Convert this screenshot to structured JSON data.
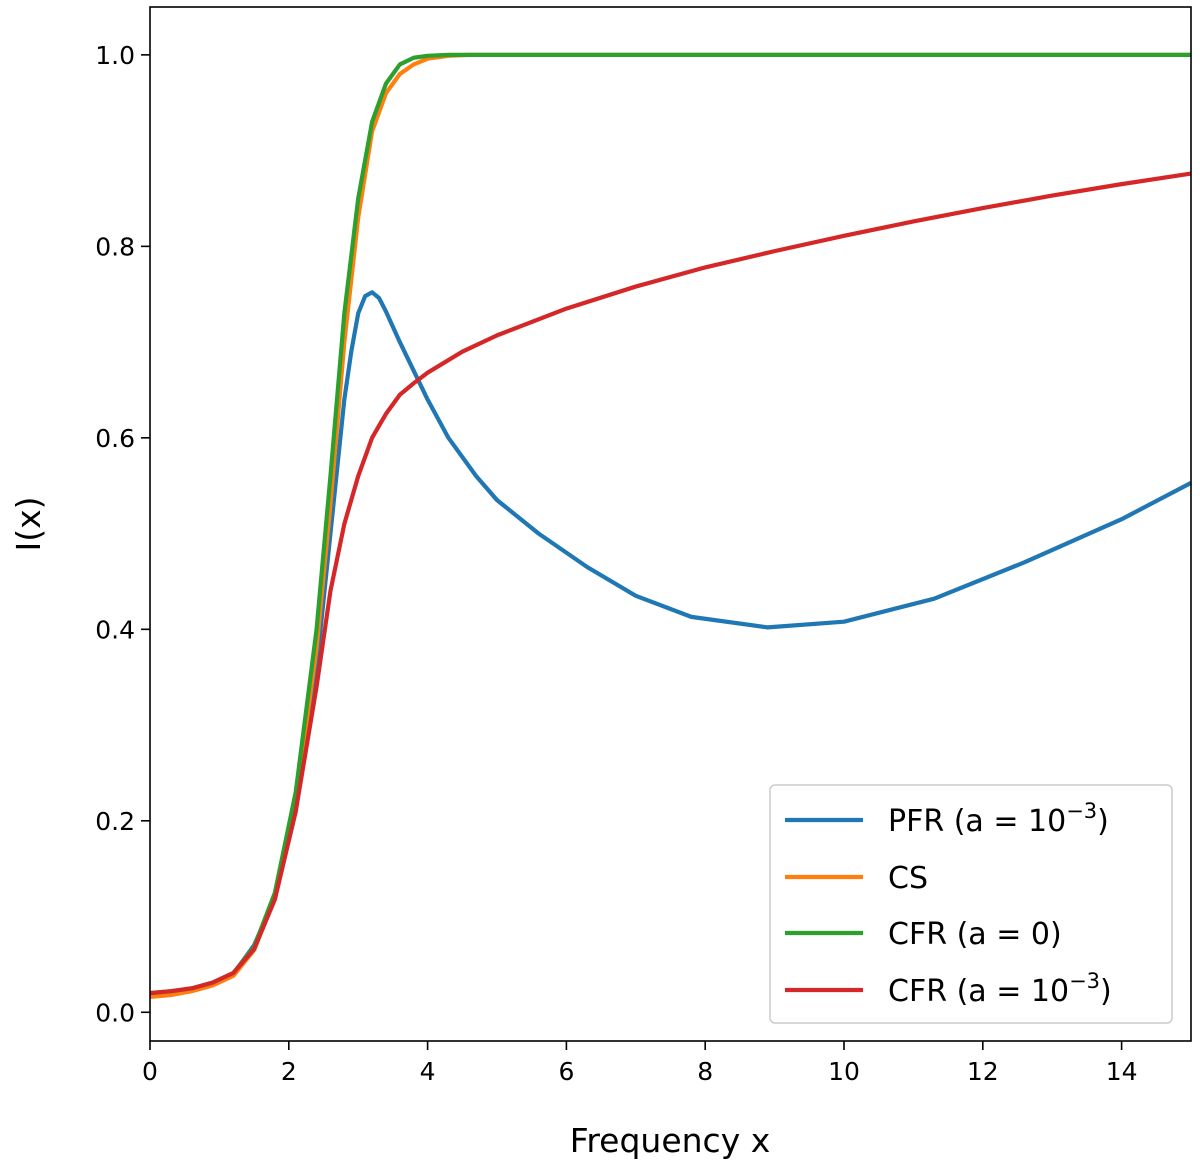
{
  "chart_data": {
    "type": "line",
    "title": "",
    "xlabel": "Frequency x",
    "ylabel": "I(x)",
    "xlim": [
      0,
      15
    ],
    "ylim": [
      -0.03,
      1.05
    ],
    "xticks": [
      0,
      2,
      4,
      6,
      8,
      10,
      12,
      14
    ],
    "yticks": [
      0.0,
      0.2,
      0.4,
      0.6,
      0.8,
      1.0
    ],
    "xtick_labels": [
      "0",
      "2",
      "4",
      "6",
      "8",
      "10",
      "12",
      "14"
    ],
    "ytick_labels": [
      "0.0",
      "0.2",
      "0.4",
      "0.6",
      "0.8",
      "1.0"
    ],
    "grid": false,
    "legend_position": "bottom-right",
    "series": [
      {
        "name": "PFR (a = 10^-3)",
        "legend_label": "PFR (a = 10",
        "legend_exp": "−3",
        "legend_close": ")",
        "color": "#1f77b4",
        "x": [
          0,
          0.3,
          0.6,
          0.9,
          1.2,
          1.5,
          1.8,
          2.1,
          2.4,
          2.6,
          2.8,
          2.9,
          3.0,
          3.1,
          3.2,
          3.3,
          3.4,
          3.6,
          3.8,
          4.0,
          4.3,
          4.7,
          5.0,
          5.6,
          6.3,
          7.0,
          7.8,
          8.9,
          10.0,
          11.3,
          12.6,
          14.0,
          15.0
        ],
        "y": [
          0.02,
          0.021,
          0.024,
          0.03,
          0.04,
          0.07,
          0.12,
          0.21,
          0.36,
          0.5,
          0.64,
          0.69,
          0.73,
          0.748,
          0.752,
          0.746,
          0.732,
          0.7,
          0.67,
          0.64,
          0.6,
          0.56,
          0.535,
          0.5,
          0.465,
          0.435,
          0.413,
          0.402,
          0.408,
          0.432,
          0.47,
          0.515,
          0.553
        ]
      },
      {
        "name": "CS",
        "legend_label": "CS",
        "legend_exp": "",
        "legend_close": "",
        "color": "#ff7f0e",
        "x": [
          0,
          0.3,
          0.6,
          0.9,
          1.2,
          1.5,
          1.8,
          2.1,
          2.4,
          2.6,
          2.8,
          3.0,
          3.2,
          3.4,
          3.6,
          3.8,
          4.0,
          4.3,
          4.6,
          5.0,
          6.0,
          8.0,
          10.0,
          12.0,
          15.0
        ],
        "y": [
          0.016,
          0.018,
          0.022,
          0.028,
          0.038,
          0.065,
          0.12,
          0.22,
          0.38,
          0.53,
          0.7,
          0.83,
          0.92,
          0.96,
          0.98,
          0.99,
          0.996,
          0.999,
          1.0,
          1.0,
          1.0,
          1.0,
          1.0,
          1.0,
          1.0
        ]
      },
      {
        "name": "CFR (a = 0)",
        "legend_label": "CFR (a = 0)",
        "legend_exp": "",
        "legend_close": "",
        "color": "#2ca02c",
        "x": [
          0,
          0.3,
          0.6,
          0.9,
          1.2,
          1.5,
          1.8,
          2.1,
          2.4,
          2.6,
          2.8,
          3.0,
          3.2,
          3.4,
          3.6,
          3.8,
          4.0,
          4.3,
          4.6,
          5.0,
          6.0,
          8.0,
          10.0,
          12.0,
          15.0
        ],
        "y": [
          0.02,
          0.022,
          0.025,
          0.031,
          0.041,
          0.068,
          0.125,
          0.23,
          0.4,
          0.56,
          0.73,
          0.85,
          0.93,
          0.97,
          0.99,
          0.997,
          0.999,
          1.0,
          1.0,
          1.0,
          1.0,
          1.0,
          1.0,
          1.0,
          1.0
        ]
      },
      {
        "name": "CFR (a = 10^-3)",
        "legend_label": "CFR (a = 10",
        "legend_exp": "−3",
        "legend_close": ")",
        "color": "#d62728",
        "x": [
          0,
          0.3,
          0.6,
          0.9,
          1.2,
          1.5,
          1.8,
          2.1,
          2.4,
          2.6,
          2.8,
          3.0,
          3.2,
          3.4,
          3.6,
          3.8,
          4.0,
          4.5,
          5.0,
          6.0,
          7.0,
          8.0,
          9.0,
          10.0,
          11.0,
          12.0,
          13.0,
          14.0,
          15.0
        ],
        "y": [
          0.02,
          0.022,
          0.025,
          0.031,
          0.041,
          0.066,
          0.118,
          0.21,
          0.34,
          0.44,
          0.51,
          0.56,
          0.6,
          0.625,
          0.645,
          0.657,
          0.668,
          0.69,
          0.707,
          0.735,
          0.758,
          0.778,
          0.795,
          0.811,
          0.826,
          0.84,
          0.853,
          0.865,
          0.876
        ]
      }
    ]
  }
}
